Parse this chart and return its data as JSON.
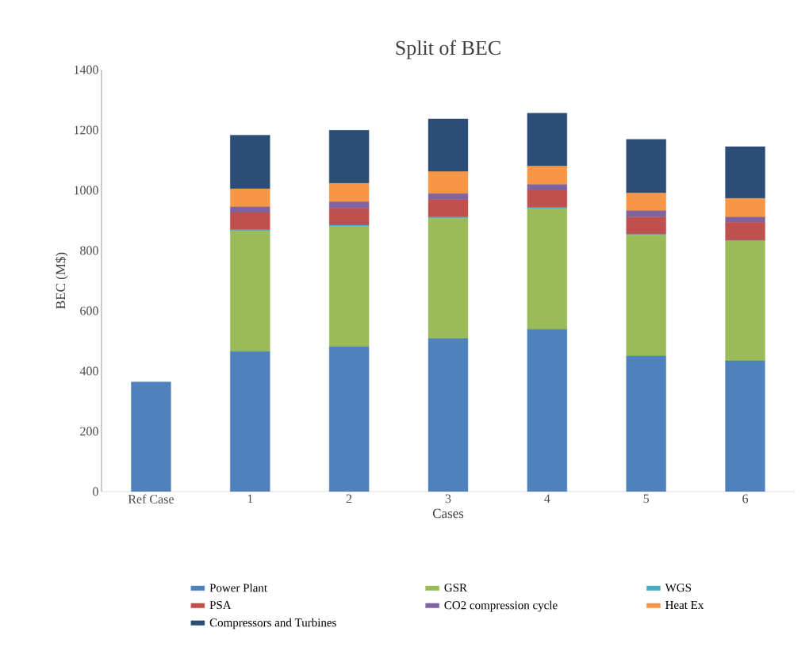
{
  "chart_data": {
    "type": "bar",
    "stacked": true,
    "title": "Split of BEC",
    "xlabel": "Cases",
    "ylabel": "BEC (M$)",
    "categories": [
      "Ref Case",
      "1",
      "2",
      "3",
      "4",
      "5",
      "6"
    ],
    "series": [
      {
        "name": "Power Plant",
        "color": "#4f81bd",
        "values": [
          364,
          465,
          481,
          508,
          539,
          450,
          434
        ]
      },
      {
        "name": "GSR",
        "color": "#9bbb59",
        "values": [
          null,
          400,
          399,
          399,
          400,
          401,
          398
        ]
      },
      {
        "name": "WGS",
        "color": "#4bacc6",
        "values": [
          null,
          4,
          4,
          4,
          4,
          4,
          2
        ]
      },
      {
        "name": "PSA",
        "color": "#c0504d",
        "values": [
          null,
          57,
          57,
          58,
          57,
          56,
          59
        ]
      },
      {
        "name": "CO2 compression cycle",
        "color": "#8064a2",
        "values": [
          null,
          19,
          21,
          20,
          19,
          21,
          18
        ]
      },
      {
        "name": "Heat Ex",
        "color": "#f79646",
        "values": [
          null,
          60,
          61,
          73,
          61,
          59,
          62
        ]
      },
      {
        "name": "Compressors and Turbines",
        "color": "#2c4d75",
        "values": [
          null,
          178,
          176,
          175,
          176,
          178,
          172
        ]
      }
    ],
    "ylim": [
      0,
      1400
    ],
    "yticks": [
      0,
      200,
      400,
      600,
      800,
      1000,
      1200,
      1400
    ],
    "grid": false,
    "legend": "bottom"
  }
}
